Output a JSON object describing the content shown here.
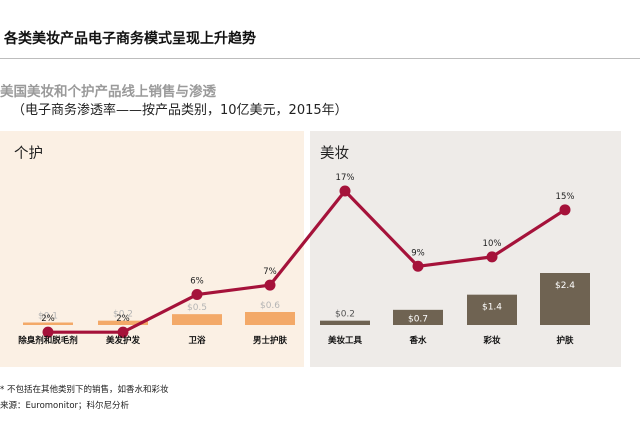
{
  "page": {
    "title": "各类美妆产品电子商务模式呈现上升趋势"
  },
  "panels": {
    "left_label": "个护",
    "right_label": "美妆"
  },
  "footnotes": {
    "note": "* 不包括在其他类别下的销售，如香水和彩妆",
    "source": "来源：Euromonitor；科尔尼分析"
  },
  "colors": {
    "line": "#a5123a",
    "left_bar": "#f3a968",
    "right_bar": "#6f6352",
    "left_panel": "#fbf0e4",
    "right_panel": "#eeebe8"
  },
  "chart_data": {
    "type": "bar",
    "title": "美国美妆和个护产品线上销售与渗透",
    "subtitle": "（电子商务渗透率——按产品类别，10亿美元，2015年）",
    "categories": [
      "除臭剂和脱毛剂",
      "美发护发",
      "卫浴",
      "男士护肤",
      "美妆工具",
      "香水",
      "彩妆",
      "护肤"
    ],
    "groups": [
      {
        "name": "个护",
        "categories": [
          "除臭剂和脱毛剂",
          "美发护发",
          "卫浴",
          "男士护肤"
        ]
      },
      {
        "name": "美妆",
        "categories": [
          "美妆工具",
          "香水",
          "彩妆",
          "护肤"
        ]
      }
    ],
    "series": [
      {
        "type": "bar",
        "values": [
          0.1,
          0.2,
          0.5,
          0.6,
          0.2,
          0.7,
          1.4,
          2.4
        ],
        "labels": [
          "$0.1",
          "$0.2",
          "$0.5",
          "$0.6",
          "$0.2",
          "$0.7",
          "$1.4",
          "$2.4"
        ]
      },
      {
        "type": "line",
        "values": [
          2,
          2,
          6,
          7,
          17,
          9,
          10,
          15
        ],
        "labels": [
          "2%",
          "2%",
          "6%",
          "7%",
          "17%",
          "9%",
          "10%",
          "15%"
        ]
      }
    ]
  }
}
